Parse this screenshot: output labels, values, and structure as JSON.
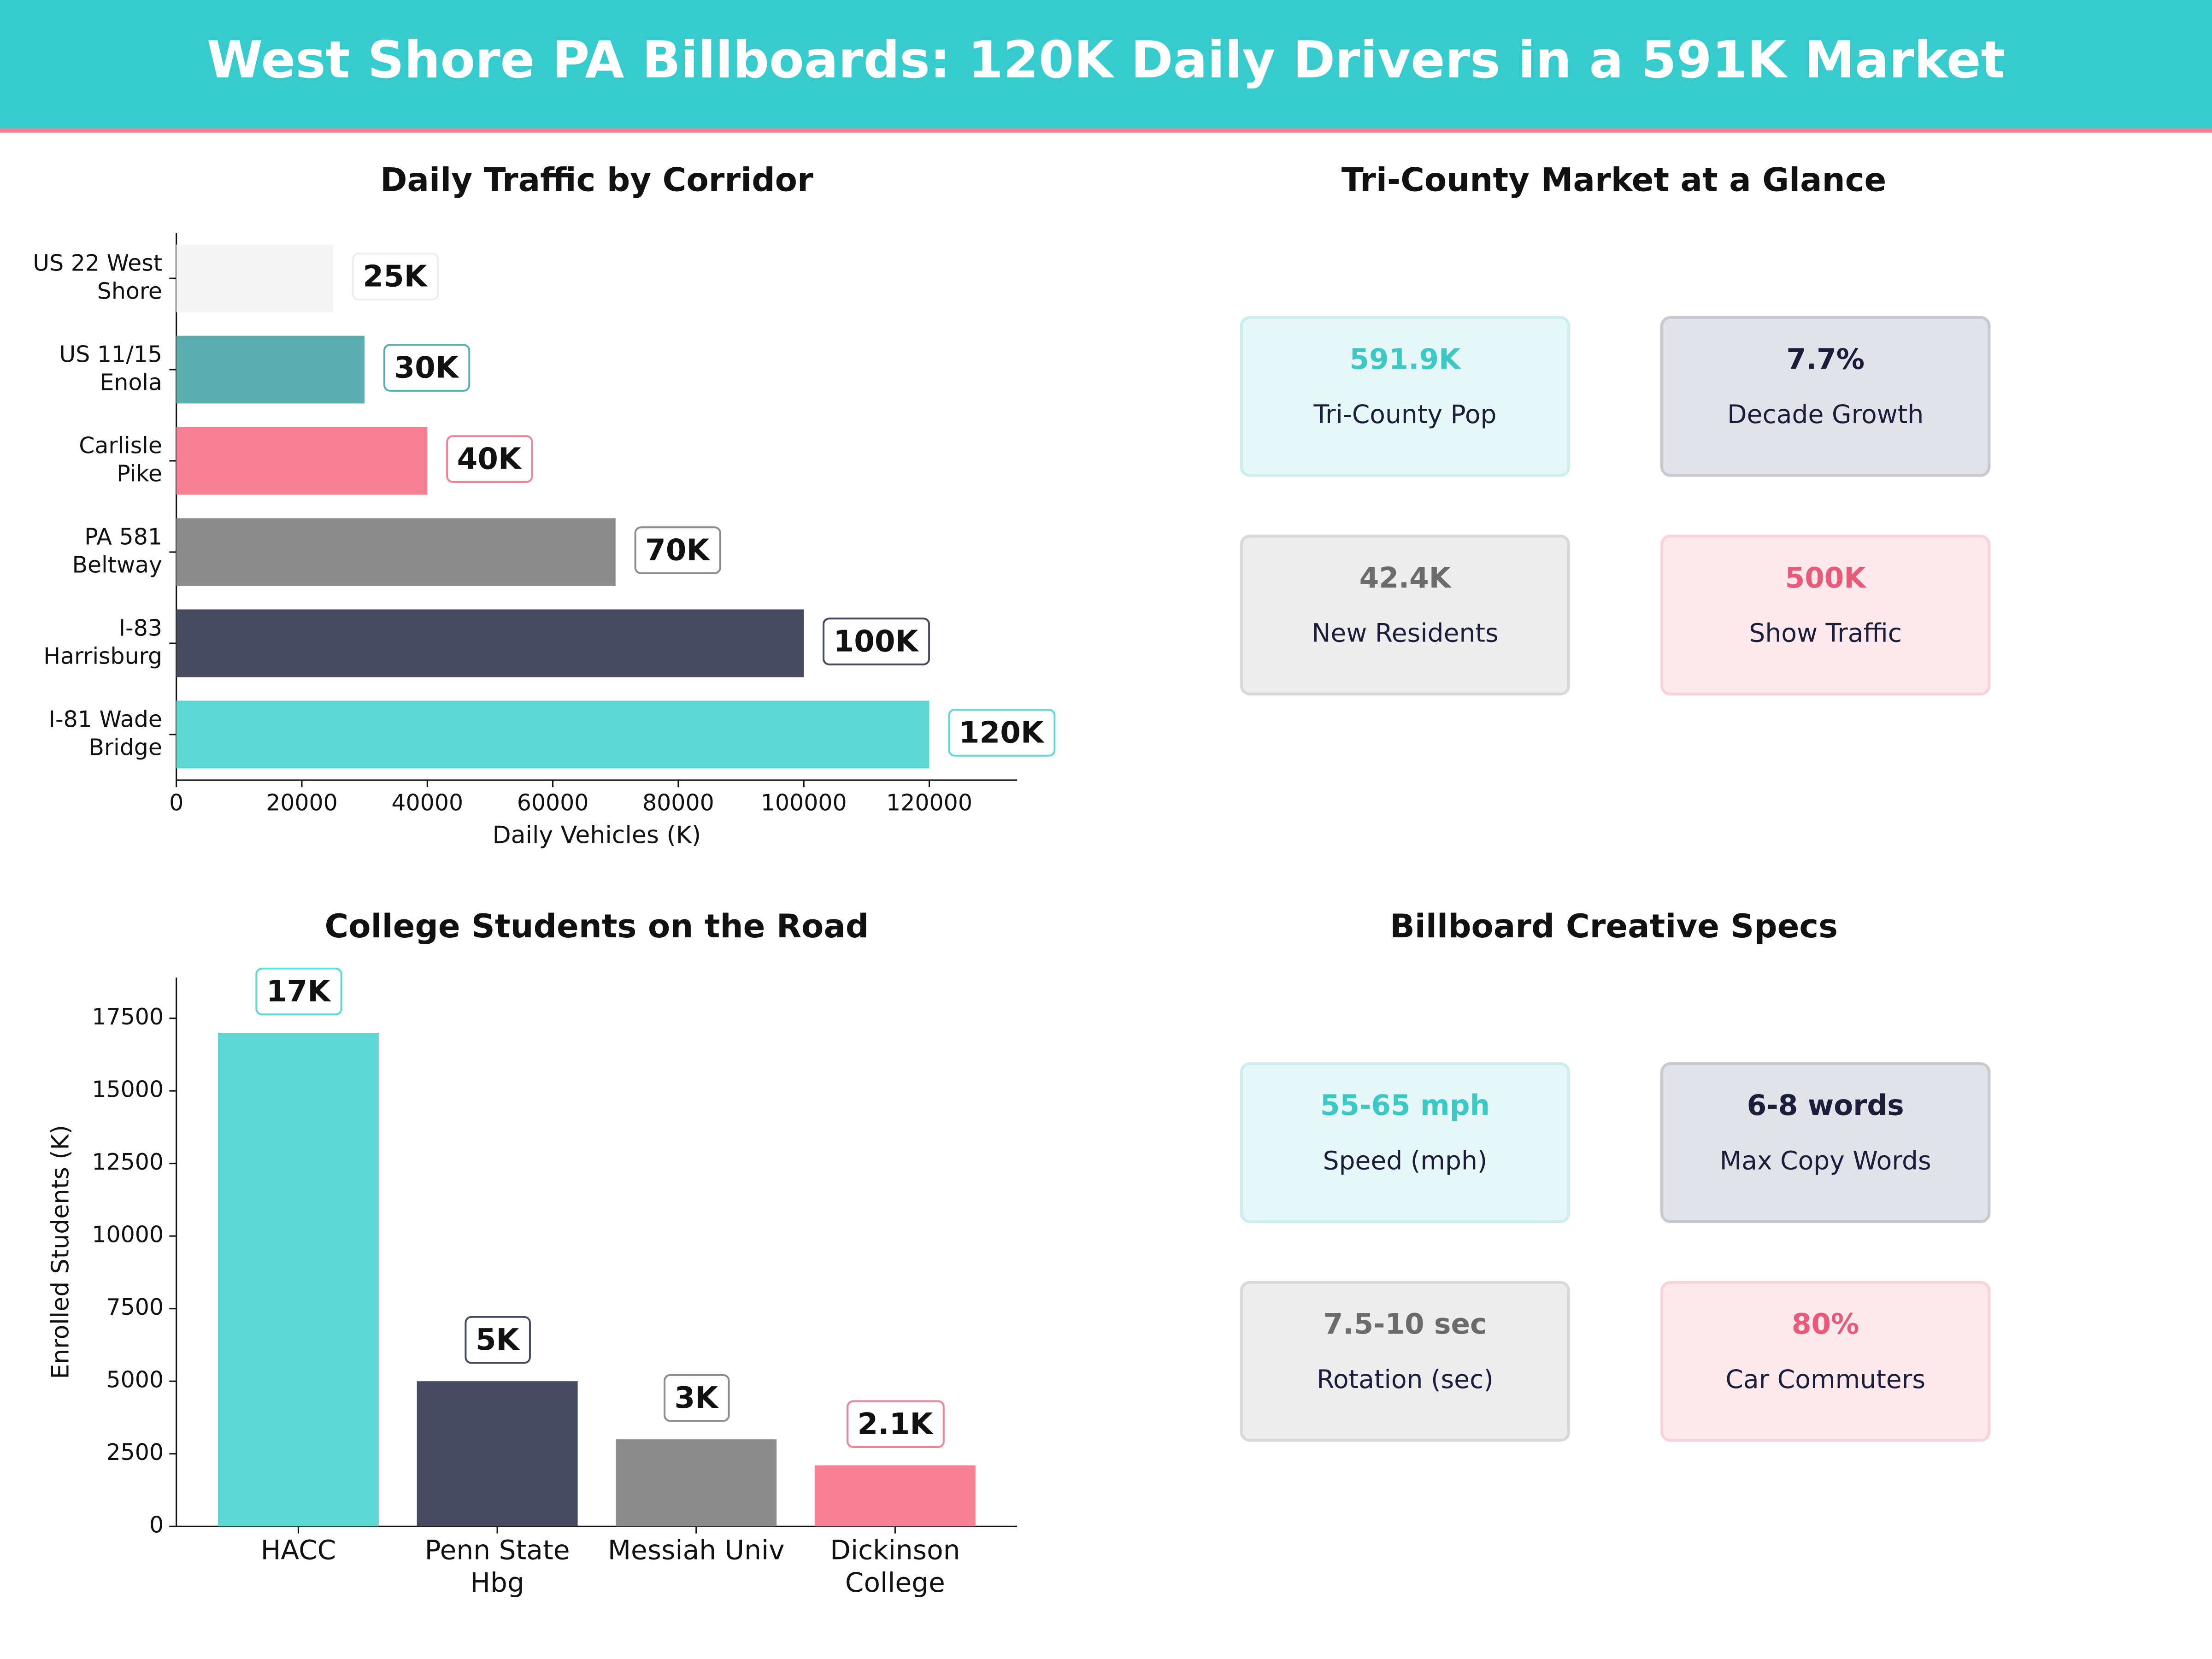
{
  "header": {
    "title": "West Shore PA Billboards: 120K Daily Drivers in a 591K Market"
  },
  "chart_data": [
    {
      "type": "hbar",
      "title": "Daily Traffic by Corridor",
      "x_label": "Daily Vehicles (K)",
      "categories": [
        "US 22 West\nShore",
        "US 11/15\nEnola",
        "Carlisle\nPike",
        "PA 581\nBeltway",
        "I-83\nHarrisburg",
        "I-81 Wade\nBridge"
      ],
      "values": [
        25000,
        30000,
        40000,
        70000,
        100000,
        120000
      ],
      "value_labels": [
        "25K",
        "30K",
        "40K",
        "70K",
        "100K",
        "120K"
      ],
      "colors": [
        "#f5f5f5",
        "#5aadae",
        "#f77f93",
        "#8c8c8c",
        "#464a60",
        "#5dd8d5"
      ],
      "xlim": [
        0,
        134000
      ],
      "xticks": [
        0,
        20000,
        40000,
        60000,
        80000,
        100000,
        120000
      ]
    },
    {
      "type": "bar",
      "title": "College Students on the Road",
      "y_label": "Enrolled Students (K)",
      "categories": [
        "HACC",
        "Penn State\nHbg",
        "Messiah Univ",
        "Dickinson\nCollege"
      ],
      "values": [
        17000,
        5000,
        3000,
        2100
      ],
      "value_labels": [
        "17K",
        "5K",
        "3K",
        "2.1K"
      ],
      "colors": [
        "#5dd8d5",
        "#464a60",
        "#8c8c8c",
        "#f77f93"
      ],
      "ylim": [
        0,
        18900
      ],
      "yticks": [
        0,
        2500,
        5000,
        7500,
        10000,
        12500,
        15000,
        17500
      ]
    }
  ],
  "panels": [
    {
      "title": "Tri-County Market at a Glance",
      "cards": [
        {
          "value": "591.9K",
          "label": "Tri-County Pop"
        },
        {
          "value": "7.7%",
          "label": "Decade Growth"
        },
        {
          "value": "42.4K",
          "label": "New Residents"
        },
        {
          "value": "500K",
          "label": "Show Traffic"
        }
      ]
    },
    {
      "title": "Billboard Creative Specs",
      "cards": [
        {
          "value": "55-65 mph",
          "label": "Speed (mph)"
        },
        {
          "value": "6-8 words",
          "label": "Max Copy Words"
        },
        {
          "value": "7.5-10 sec",
          "label": "Rotation (sec)"
        },
        {
          "value": "80%",
          "label": "Car Commuters"
        }
      ]
    }
  ]
}
